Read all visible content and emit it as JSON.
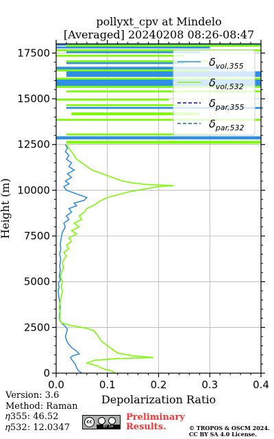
{
  "title_line1": "pollyxt_cpv at Mindelo",
  "title_line2": "[Averaged] 20240208 08:26-08:47",
  "footer": {
    "version": "Version: 3.6",
    "method": "Method: Raman",
    "eta355": "𝜂355:  46.52",
    "eta532": "𝜂532: 12.0347",
    "cc_label": "BY SA",
    "cc_text": "cc",
    "preliminary_line1": "Preliminary",
    "preliminary_line2": "Results.",
    "copyright_line1": "© TROPOS & OSCM 2024.",
    "copyright_line2": "CC BY SA 4.0 License."
  },
  "colors": {
    "vol355": "#2f8fe6",
    "vol532": "#7cfc00",
    "par355": "#0000cc",
    "par532": "#1a7a5a",
    "preliminary": "#ff3333"
  },
  "chart_data": {
    "type": "line",
    "xlabel": "Depolarization Ratio",
    "ylabel": "Height (m)",
    "xlim": [
      0,
      0.4
    ],
    "ylim": [
      0,
      18000
    ],
    "x_ticks": [
      0.0,
      0.1,
      0.2,
      0.3,
      0.4
    ],
    "x_tick_labels": [
      "0.0",
      "0.1",
      "0.2",
      "0.3",
      "0.4"
    ],
    "y_ticks": [
      0,
      2500,
      5000,
      7500,
      10000,
      12500,
      15000,
      17500
    ],
    "y_tick_labels": [
      "0",
      "2500",
      "5000",
      "7500",
      "10000",
      "12500",
      "15000",
      "17500"
    ],
    "grid": true,
    "legend_position": "top-right",
    "series": [
      {
        "name": "δvol,355",
        "legend_main": "δ",
        "legend_sub": "vol,355",
        "style": "solid",
        "color": "#2f8fe6",
        "points": [
          [
            0.05,
            0
          ],
          [
            0.043,
            150
          ],
          [
            0.04,
            300
          ],
          [
            0.037,
            500
          ],
          [
            0.033,
            650
          ],
          [
            0.03,
            750
          ],
          [
            0.028,
            850
          ],
          [
            0.032,
            950
          ],
          [
            0.045,
            1050
          ],
          [
            0.04,
            1200
          ],
          [
            0.03,
            1400
          ],
          [
            0.024,
            1600
          ],
          [
            0.02,
            1800
          ],
          [
            0.018,
            2000
          ],
          [
            0.02,
            2200
          ],
          [
            0.022,
            2400
          ],
          [
            0.018,
            2550
          ],
          [
            0.012,
            2700
          ],
          [
            0.008,
            2850
          ],
          [
            0.006,
            3000
          ],
          [
            0.007,
            3300
          ],
          [
            0.008,
            3600
          ],
          [
            0.007,
            3900
          ],
          [
            0.005,
            4200
          ],
          [
            0.004,
            4500
          ],
          [
            0.006,
            4700
          ],
          [
            0.004,
            4900
          ],
          [
            0.008,
            5100
          ],
          [
            0.006,
            5300
          ],
          [
            0.008,
            5600
          ],
          [
            0.007,
            5900
          ],
          [
            0.009,
            6200
          ],
          [
            0.007,
            6500
          ],
          [
            0.009,
            6800
          ],
          [
            0.008,
            7100
          ],
          [
            0.01,
            7400
          ],
          [
            0.012,
            7700
          ],
          [
            0.018,
            8000
          ],
          [
            0.015,
            8200
          ],
          [
            0.025,
            8400
          ],
          [
            0.02,
            8600
          ],
          [
            0.03,
            8800
          ],
          [
            0.025,
            9000
          ],
          [
            0.04,
            9150
          ],
          [
            0.035,
            9300
          ],
          [
            0.055,
            9450
          ],
          [
            0.06,
            9600
          ],
          [
            0.05,
            9700
          ],
          [
            0.04,
            9800
          ],
          [
            0.03,
            9900
          ],
          [
            0.02,
            10000
          ],
          [
            0.015,
            10200
          ],
          [
            0.025,
            10350
          ],
          [
            0.018,
            10500
          ],
          [
            0.03,
            10700
          ],
          [
            0.022,
            10900
          ],
          [
            0.035,
            11100
          ],
          [
            0.025,
            11300
          ],
          [
            0.03,
            11500
          ],
          [
            0.02,
            11700
          ],
          [
            0.025,
            11900
          ],
          [
            0.018,
            12100
          ],
          [
            0.022,
            12300
          ],
          [
            0.018,
            12500
          ]
        ],
        "bands": [
          [
            12780,
            12950,
            0,
            0.4
          ],
          [
            14450,
            14550,
            0.02,
            0.4
          ],
          [
            15700,
            16050,
            0,
            0.4
          ],
          [
            16200,
            16500,
            0.02,
            0.4
          ],
          [
            16600,
            16750,
            0,
            0.33
          ],
          [
            16900,
            17000,
            0.02,
            0.25
          ],
          [
            17500,
            17600,
            0.02,
            0.28
          ],
          [
            17750,
            17850,
            0,
            0.3
          ],
          [
            17900,
            18000,
            0,
            0.4
          ]
        ]
      },
      {
        "name": "δvol,532",
        "legend_main": "δ",
        "legend_sub": "vol,532",
        "style": "solid",
        "color": "#7cfc00",
        "points": [
          [
            0.115,
            0
          ],
          [
            0.11,
            120
          ],
          [
            0.09,
            250
          ],
          [
            0.08,
            400
          ],
          [
            0.06,
            550
          ],
          [
            0.075,
            700
          ],
          [
            0.12,
            800
          ],
          [
            0.19,
            850
          ],
          [
            0.15,
            950
          ],
          [
            0.12,
            1100
          ],
          [
            0.11,
            1300
          ],
          [
            0.1,
            1500
          ],
          [
            0.09,
            1700
          ],
          [
            0.085,
            1900
          ],
          [
            0.08,
            2100
          ],
          [
            0.075,
            2300
          ],
          [
            0.06,
            2450
          ],
          [
            0.03,
            2600
          ],
          [
            0.01,
            2750
          ],
          [
            0.007,
            3000
          ],
          [
            0.008,
            3300
          ],
          [
            0.006,
            3600
          ],
          [
            0.008,
            3900
          ],
          [
            0.01,
            4200
          ],
          [
            0.012,
            4500
          ],
          [
            0.01,
            4700
          ],
          [
            0.012,
            5000
          ],
          [
            0.008,
            5300
          ],
          [
            0.012,
            5600
          ],
          [
            0.015,
            5800
          ],
          [
            0.012,
            6000
          ],
          [
            0.015,
            6200
          ],
          [
            0.02,
            6400
          ],
          [
            0.015,
            6600
          ],
          [
            0.025,
            6800
          ],
          [
            0.02,
            7000
          ],
          [
            0.03,
            7200
          ],
          [
            0.025,
            7400
          ],
          [
            0.04,
            7600
          ],
          [
            0.03,
            7800
          ],
          [
            0.045,
            8000
          ],
          [
            0.035,
            8200
          ],
          [
            0.05,
            8400
          ],
          [
            0.045,
            8600
          ],
          [
            0.055,
            8800
          ],
          [
            0.06,
            9000
          ],
          [
            0.075,
            9200
          ],
          [
            0.085,
            9400
          ],
          [
            0.1,
            9600
          ],
          [
            0.12,
            9750
          ],
          [
            0.14,
            9900
          ],
          [
            0.16,
            10000
          ],
          [
            0.18,
            10100
          ],
          [
            0.2,
            10200
          ],
          [
            0.23,
            10250
          ],
          [
            0.18,
            10300
          ],
          [
            0.15,
            10400
          ],
          [
            0.13,
            10500
          ],
          [
            0.11,
            10700
          ],
          [
            0.09,
            10900
          ],
          [
            0.07,
            11100
          ],
          [
            0.06,
            11300
          ],
          [
            0.05,
            11500
          ],
          [
            0.04,
            11700
          ],
          [
            0.035,
            11900
          ],
          [
            0.03,
            12100
          ],
          [
            0.025,
            12300
          ],
          [
            0.02,
            12500
          ]
        ],
        "bands": [
          [
            12550,
            12700,
            0.02,
            0.4
          ],
          [
            13000,
            13100,
            0.02,
            0.35
          ],
          [
            13800,
            13900,
            0,
            0.4
          ],
          [
            14100,
            14250,
            0.03,
            0.28
          ],
          [
            14600,
            14700,
            0.02,
            0.25
          ],
          [
            14900,
            15000,
            0,
            0.22
          ],
          [
            15350,
            15450,
            0.02,
            0.4
          ],
          [
            15600,
            15700,
            0,
            0.4
          ],
          [
            16050,
            16150,
            0,
            0.4
          ],
          [
            16500,
            16600,
            0,
            0.3
          ],
          [
            17000,
            17100,
            0.02,
            0.3
          ],
          [
            17300,
            17400,
            0,
            0.25
          ],
          [
            17600,
            17700,
            0,
            0.4
          ],
          [
            17850,
            17950,
            0.02,
            0.4
          ]
        ]
      },
      {
        "name": "δpar,355",
        "legend_main": "δ",
        "legend_sub": "par,355",
        "style": "dashed",
        "color": "#0000cc",
        "points": []
      },
      {
        "name": "δpar,532",
        "legend_main": "δ",
        "legend_sub": "par,532",
        "style": "dashed",
        "color": "#1a7a5a",
        "points": []
      }
    ]
  }
}
